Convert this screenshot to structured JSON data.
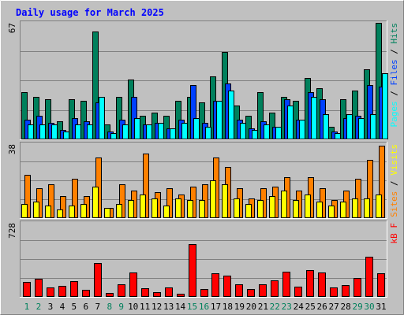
{
  "chart_data": {
    "type": "bar",
    "title": "Daily usage for March 2025",
    "categories": [
      "1",
      "2",
      "3",
      "4",
      "5",
      "6",
      "7",
      "8",
      "9",
      "10",
      "11",
      "12",
      "13",
      "14",
      "15",
      "16",
      "17",
      "18",
      "19",
      "20",
      "21",
      "22",
      "23",
      "24",
      "25",
      "26",
      "27",
      "28",
      "29",
      "30",
      "31"
    ],
    "weekend_days": [
      "1",
      "8",
      "15",
      "22",
      "29"
    ],
    "sunday_days": [
      "2",
      "9",
      "16",
      "23",
      "30"
    ],
    "panels": [
      {
        "name": "hits-files-pages",
        "scale_label": "67",
        "ylim": [
          0,
          67
        ],
        "legend": [
          "Pages",
          "/",
          "Files",
          "/",
          "Hits"
        ],
        "series": [
          {
            "name": "Hits",
            "color": "#00805c",
            "values": [
              27,
              24,
              23,
              10,
              23,
              22,
              62,
              8,
              24,
              34,
              13,
              15,
              13,
              22,
              24,
              21,
              36,
              50,
              19,
              13,
              27,
              15,
              24,
              22,
              35,
              29,
              7,
              23,
              28,
              40,
              67
            ]
          },
          {
            "name": "Files",
            "color": "#0040ff",
            "values": [
              11,
              13,
              9,
              5,
              12,
              10,
              21,
              4,
              11,
              24,
              8,
              9,
              6,
              11,
              31,
              9,
              22,
              32,
              11,
              6,
              10,
              7,
              23,
              11,
              27,
              23,
              4,
              12,
              13,
              31,
              30
            ]
          },
          {
            "name": "Pages",
            "color": "#00ffff",
            "values": [
              8,
              8,
              8,
              4,
              8,
              8,
              24,
              3,
              8,
              12,
              8,
              9,
              6,
              9,
              12,
              7,
              22,
              28,
              9,
              5,
              8,
              7,
              19,
              11,
              24,
              14,
              3,
              14,
              12,
              14,
              38
            ]
          }
        ]
      },
      {
        "name": "visits-sites",
        "scale_label": "38",
        "ylim": [
          0,
          38
        ],
        "legend": [
          "Sites",
          "/",
          "Visits"
        ],
        "series": [
          {
            "name": "Visits",
            "color": "#ff8000",
            "values": [
              22,
              15,
              17,
              11,
              20,
              11,
              31,
              5,
              17,
              14,
              33,
              13,
              15,
              12,
              16,
              17,
              31,
              26,
              15,
              10,
              15,
              16,
              21,
              14,
              21,
              15,
              9,
              14,
              20,
              30,
              37
            ]
          },
          {
            "name": "Sites",
            "color": "#ffff00",
            "values": [
              7,
              8,
              6,
              4,
              6,
              7,
              16,
              5,
              7,
              9,
              12,
              10,
              6,
              10,
              9,
              9,
              19,
              17,
              10,
              7,
              9,
              11,
              14,
              9,
              12,
              8,
              6,
              8,
              10,
              10,
              12
            ]
          }
        ]
      },
      {
        "name": "kb",
        "scale_label": "728",
        "ylim": [
          0,
          728
        ],
        "legend": [
          "kB",
          "F"
        ],
        "series": [
          {
            "name": "kB",
            "color": "#ff0000",
            "values": [
              140,
              170,
              90,
              105,
              150,
              65,
              325,
              28,
              115,
              235,
              78,
              37,
              90,
              25,
              520,
              70,
              230,
              200,
              120,
              70,
              115,
              160,
              245,
              92,
              255,
              235,
              85,
              110,
              180,
              395,
              230
            ]
          }
        ]
      }
    ],
    "colors": {
      "background": "#c0c0c0",
      "frame_light": "#ffffff",
      "frame_dark": "#808080",
      "gridline": "#808080",
      "title": "#0000ff",
      "day_label": "#000000",
      "weekend_label": "#00805c",
      "text_dark": "#000000"
    },
    "grid": true
  }
}
